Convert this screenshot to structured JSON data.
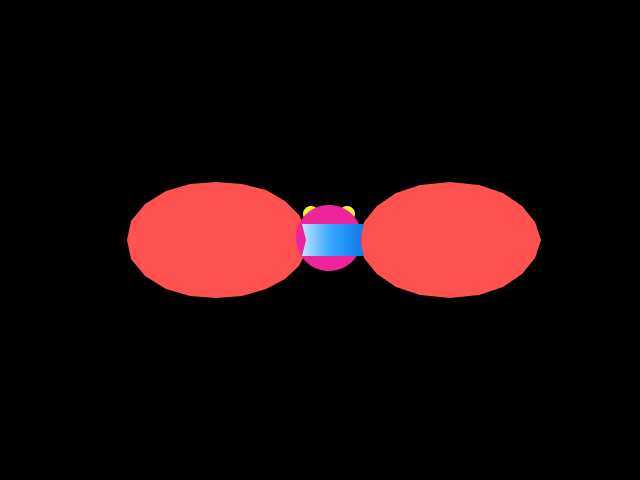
{
  "scene": {
    "background_color": "#000000",
    "objects": {
      "left_lobe": {
        "name": "left-red-ellipse",
        "color": "#ff5250"
      },
      "right_lobe": {
        "name": "right-red-ellipse",
        "color": "#ff5250"
      },
      "center_body": {
        "name": "magenta-sphere",
        "color": "#f0249a"
      },
      "center_band": {
        "name": "blue-cylinder-band",
        "color_light": "#bfe6ff",
        "color_mid": "#38a7ff",
        "color_dark": "#0b79e7"
      },
      "left_knob": {
        "name": "left-yellow-knob",
        "color": "#fff22a"
      },
      "right_knob": {
        "name": "right-yellow-knob",
        "color": "#fff22a"
      }
    }
  }
}
